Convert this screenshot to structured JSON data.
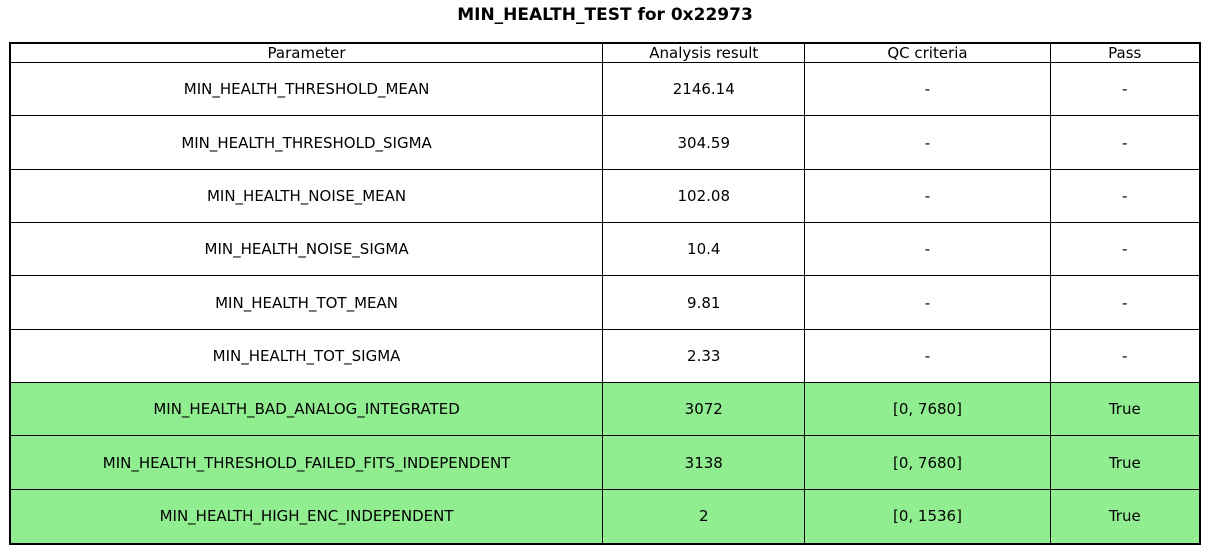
{
  "title": "MIN_HEALTH_TEST for 0x22973",
  "colors": {
    "pass_green": "#90EE90",
    "border": "#000000",
    "background": "#ffffff"
  },
  "table": {
    "columns": [
      "Parameter",
      "Analysis result",
      "QC criteria",
      "Pass"
    ],
    "rows": [
      {
        "cells": [
          "MIN_HEALTH_THRESHOLD_MEAN",
          "2146.14",
          "-",
          "-"
        ],
        "highlight": false
      },
      {
        "cells": [
          "MIN_HEALTH_THRESHOLD_SIGMA",
          "304.59",
          "-",
          "-"
        ],
        "highlight": false
      },
      {
        "cells": [
          "MIN_HEALTH_NOISE_MEAN",
          "102.08",
          "-",
          "-"
        ],
        "highlight": false
      },
      {
        "cells": [
          "MIN_HEALTH_NOISE_SIGMA",
          "10.4",
          "-",
          "-"
        ],
        "highlight": false
      },
      {
        "cells": [
          "MIN_HEALTH_TOT_MEAN",
          "9.81",
          "-",
          "-"
        ],
        "highlight": false
      },
      {
        "cells": [
          "MIN_HEALTH_TOT_SIGMA",
          "2.33",
          "-",
          "-"
        ],
        "highlight": false
      },
      {
        "cells": [
          "MIN_HEALTH_BAD_ANALOG_INTEGRATED",
          "3072",
          "[0, 7680]",
          "True"
        ],
        "highlight": true
      },
      {
        "cells": [
          "MIN_HEALTH_THRESHOLD_FAILED_FITS_INDEPENDENT",
          "3138",
          "[0, 7680]",
          "True"
        ],
        "highlight": true
      },
      {
        "cells": [
          "MIN_HEALTH_HIGH_ENC_INDEPENDENT",
          "2",
          "[0, 1536]",
          "True"
        ],
        "highlight": true
      }
    ]
  }
}
